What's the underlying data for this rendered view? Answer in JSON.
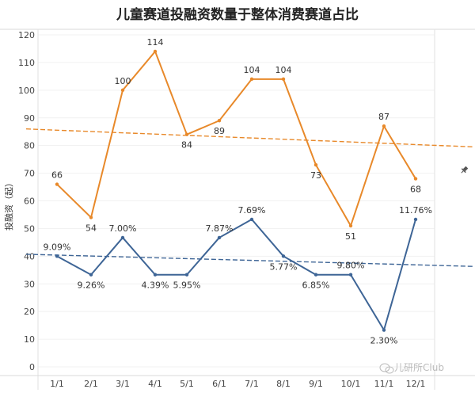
{
  "chart_data": {
    "type": "line",
    "title": "儿童赛道投融资数量于整体消费赛道占比",
    "ylabel": "投融资（起）",
    "xlabel": "",
    "ylim": [
      0,
      120
    ],
    "yticks": [
      0,
      10,
      20,
      30,
      40,
      50,
      60,
      70,
      80,
      90,
      100,
      110,
      120
    ],
    "categories": [
      "1/1",
      "2/1",
      "3/1",
      "4/1",
      "5/1",
      "6/1",
      "7/1",
      "8/1",
      "9/1",
      "10/1",
      "11/1",
      "12/1"
    ],
    "grid": true,
    "series": [
      {
        "color": "#e8892a",
        "values": [
          66,
          54,
          100,
          114,
          84,
          89,
          104,
          104,
          73,
          51,
          87,
          68
        ],
        "labels": [
          "66",
          "54",
          "100",
          "114",
          "84",
          "89",
          "104",
          "104",
          "73",
          "51",
          "87",
          "68"
        ],
        "trend": [
          86,
          79.5
        ]
      },
      {
        "color": "#3e6596",
        "values": [
          40,
          33.3,
          46.7,
          33.3,
          33.3,
          46.7,
          53.3,
          40,
          33.3,
          33.3,
          13.3,
          53.3
        ],
        "labels": [
          "9.09%",
          "9.26%",
          "7.00%",
          "4.39%",
          "5.95%",
          "7.87%",
          "7.69%",
          "5.77%",
          "6.85%",
          "9.80%",
          "2.30%",
          "11.76%"
        ],
        "trend": [
          40.7,
          36.3
        ]
      }
    ]
  },
  "watermark": "儿研所Club",
  "icons": {
    "pin": "pin-icon",
    "wechat": "wechat-icon"
  }
}
